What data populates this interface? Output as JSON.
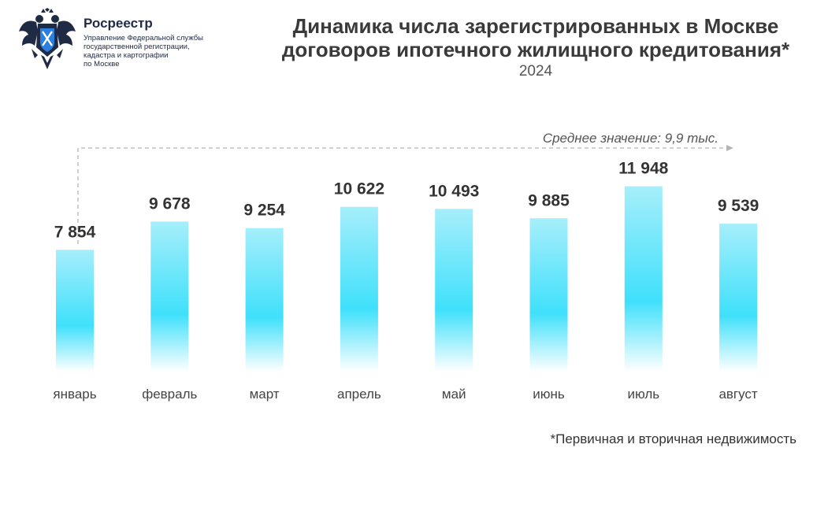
{
  "header": {
    "org_name": "Росреестр",
    "org_sub_lines": [
      "Управление Федеральной службы",
      "государственной регистрации,",
      "кадастра и картографии",
      "по Москве"
    ],
    "logo_icon": "double-headed-eagle-emblem-icon"
  },
  "chart_data": {
    "type": "bar",
    "title_lines": [
      "Динамика числа зарегистрированных в Москве",
      "договоров ипотечного жилищного кредитования*"
    ],
    "subtitle": "2024",
    "categories": [
      "январь",
      "февраль",
      "март",
      "апрель",
      "май",
      "июнь",
      "июль",
      "август"
    ],
    "values": [
      7854,
      9678,
      9254,
      10622,
      10493,
      9885,
      11948,
      9539
    ],
    "value_labels": [
      "7 854",
      "9 678",
      "9 254",
      "10 622",
      "10 493",
      "9 885",
      "11 948",
      "9 539"
    ],
    "average_label": "Среднее значение: 9,9 тыс.",
    "ylim": [
      0,
      12000
    ],
    "grid": false,
    "legend": "none",
    "bar_color": "#3fd9f5"
  },
  "footnote": "*Первичная и вторичная недвижимость"
}
